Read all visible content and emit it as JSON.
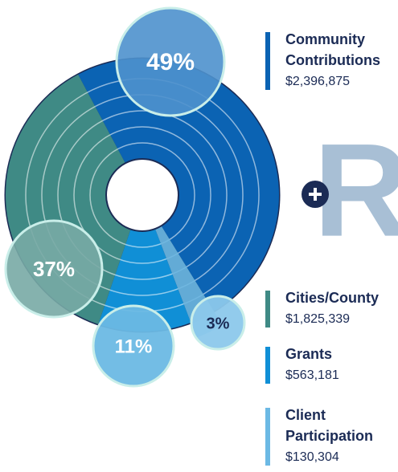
{
  "chart_data": {
    "type": "pie",
    "categories": [
      "Community Contributions",
      "Cities/County",
      "Grants",
      "Client Participation"
    ],
    "category_lines": [
      [
        "Community",
        "Contributions"
      ],
      [
        "Cities/County"
      ],
      [
        "Grants"
      ],
      [
        "Client",
        "Participation"
      ]
    ],
    "values": [
      49,
      37,
      11,
      3
    ],
    "value_labels": [
      "49%",
      "37%",
      "11%",
      "3%"
    ],
    "amount_labels": [
      "$2,396,875",
      "$1,825,339",
      "$563,181",
      "$130,304"
    ],
    "colors": [
      "#0b63b3",
      "#3f8a85",
      "#108fd6",
      "#6cb9e4"
    ],
    "logo": "R"
  }
}
